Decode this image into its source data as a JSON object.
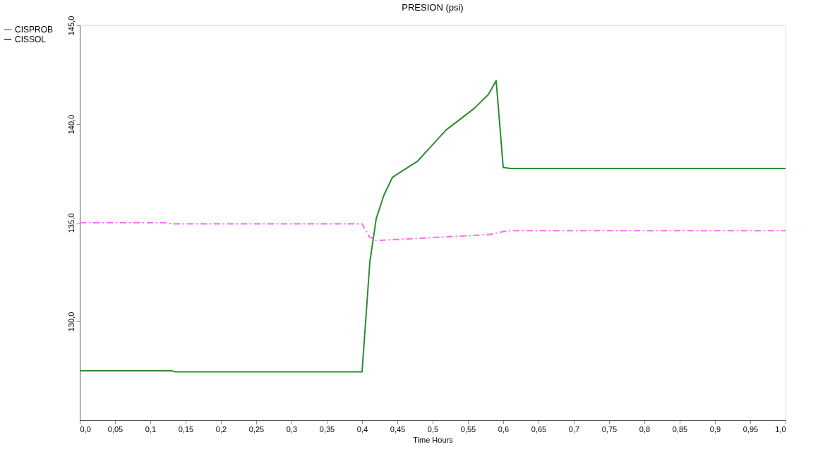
{
  "chart_data": {
    "type": "line",
    "title": "PRESION (psi)",
    "xlabel": "Time Hours",
    "xlim": [
      0,
      1
    ],
    "ylim": [
      125,
      145
    ],
    "xticks": [
      {
        "value": 0,
        "label": "0,0"
      },
      {
        "value": 0.05,
        "label": "0,05"
      },
      {
        "value": 0.1,
        "label": "0,1"
      },
      {
        "value": 0.15,
        "label": "0,15"
      },
      {
        "value": 0.2,
        "label": "0,2"
      },
      {
        "value": 0.25,
        "label": "0,25"
      },
      {
        "value": 0.3,
        "label": "0,3"
      },
      {
        "value": 0.35,
        "label": "0,35"
      },
      {
        "value": 0.4,
        "label": "0,4"
      },
      {
        "value": 0.45,
        "label": "0,45"
      },
      {
        "value": 0.5,
        "label": "0,5"
      },
      {
        "value": 0.55,
        "label": "0,55"
      },
      {
        "value": 0.6,
        "label": "0,6"
      },
      {
        "value": 0.65,
        "label": "0,65"
      },
      {
        "value": 0.7,
        "label": "0,7"
      },
      {
        "value": 0.75,
        "label": "0,75"
      },
      {
        "value": 0.8,
        "label": "0,8"
      },
      {
        "value": 0.85,
        "label": "0,85"
      },
      {
        "value": 0.9,
        "label": "0,9"
      },
      {
        "value": 0.95,
        "label": "0,95"
      },
      {
        "value": 1,
        "label": "1,0"
      }
    ],
    "yticks": [
      {
        "value": 130,
        "label": "130,0"
      },
      {
        "value": 135,
        "label": "135,0"
      },
      {
        "value": 140,
        "label": "140,0"
      },
      {
        "value": 145,
        "label": "145,0"
      }
    ],
    "grid": false,
    "legend": "left",
    "series": [
      {
        "name": "CISPROB",
        "color": "#ff66ff",
        "line_style": "dashed",
        "x": [
          0,
          0.12,
          0.13,
          0.4,
          0.41,
          0.42,
          0.5,
          0.58,
          0.6,
          0.61,
          0.7,
          1.0
        ],
        "values": [
          135.0,
          135.0,
          134.95,
          134.95,
          134.3,
          134.1,
          134.25,
          134.4,
          134.55,
          134.6,
          134.6,
          134.6
        ]
      },
      {
        "name": "CISSOL",
        "color": "#2e8b2e",
        "line_style": "solid",
        "x": [
          0,
          0.13,
          0.135,
          0.4,
          0.411,
          0.42,
          0.431,
          0.443,
          0.456,
          0.478,
          0.496,
          0.519,
          0.541,
          0.559,
          0.579,
          0.59,
          0.6,
          0.61,
          1.0
        ],
        "values": [
          127.5,
          127.5,
          127.45,
          127.45,
          133.0,
          135.2,
          136.4,
          137.3,
          137.6,
          138.1,
          138.8,
          139.7,
          140.3,
          140.8,
          141.5,
          142.2,
          137.8,
          137.75,
          137.75
        ]
      }
    ]
  }
}
